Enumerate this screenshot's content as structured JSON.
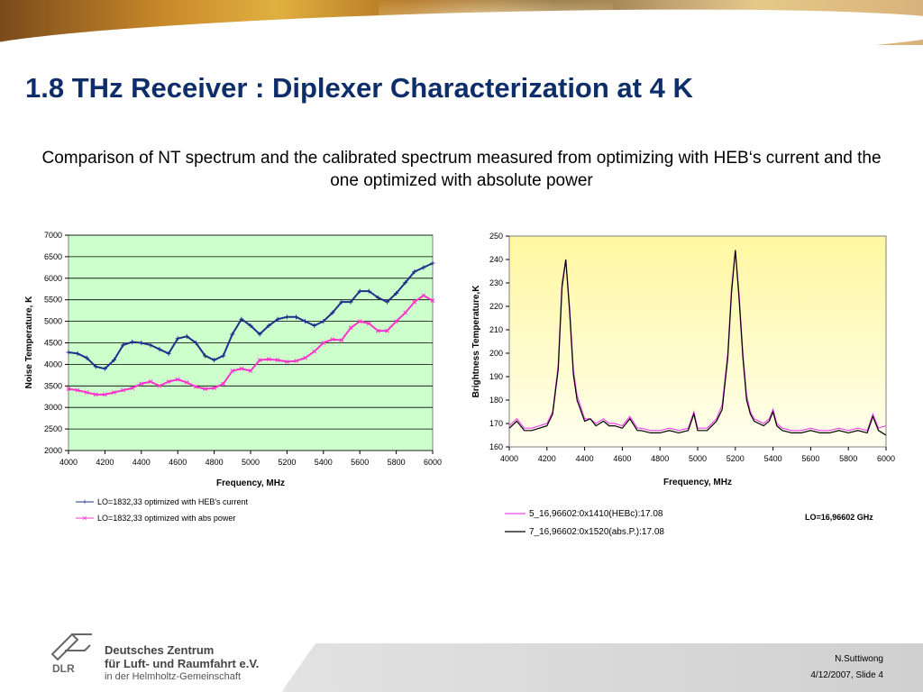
{
  "slide": {
    "title": "1.8 THz Receiver : Diplexer Characterization at 4 K",
    "subtitle": "Comparison of NT spectrum and the calibrated spectrum measured from optimizing with HEB‘s current and the one optimized with absolute power",
    "author": "N.Suttiwong",
    "date_slide": "4/12/2007, Slide 4"
  },
  "logo": {
    "mark": "DLR",
    "line1": "Deutsches Zentrum",
    "line2": "für Luft- und Raumfahrt e.V.",
    "line3": "in der Helmholtz-Gemeinschaft"
  },
  "chart_data": [
    {
      "type": "line",
      "xlabel": "Frequency, MHz",
      "ylabel": "Noise Temperature, K",
      "xlim": [
        4000,
        6000
      ],
      "ylim": [
        2000,
        7000
      ],
      "x_ticks": [
        4000,
        4200,
        4400,
        4600,
        4800,
        5000,
        5200,
        5400,
        5600,
        5800,
        6000
      ],
      "y_ticks": [
        2000,
        2500,
        3000,
        3500,
        4000,
        4500,
        5000,
        5500,
        6000,
        6500,
        7000
      ],
      "grid": true,
      "background": "#ccffcc",
      "legend_position": "bottom-left",
      "series": [
        {
          "name": "LO=1832,33 optimized with HEB's current",
          "color": "#1f2f8a",
          "marker": "plus",
          "x": [
            4000,
            4050,
            4100,
            4150,
            4200,
            4250,
            4300,
            4350,
            4400,
            4450,
            4500,
            4550,
            4600,
            4650,
            4700,
            4750,
            4800,
            4850,
            4900,
            4950,
            5000,
            5050,
            5100,
            5150,
            5200,
            5250,
            5300,
            5350,
            5400,
            5450,
            5500,
            5550,
            5600,
            5650,
            5700,
            5750,
            5800,
            5850,
            5900,
            5950,
            6000
          ],
          "y": [
            4280,
            4250,
            4150,
            3950,
            3900,
            4100,
            4450,
            4520,
            4500,
            4450,
            4350,
            4250,
            4600,
            4650,
            4500,
            4200,
            4100,
            4200,
            4700,
            5050,
            4900,
            4700,
            4900,
            5050,
            5100,
            5100,
            5000,
            4900,
            5000,
            5200,
            5450,
            5450,
            5700,
            5700,
            5550,
            5450,
            5650,
            5900,
            6150,
            6250,
            6350
          ]
        },
        {
          "name": "LO=1832,33 optimized with abs power",
          "color": "#ff33cc",
          "marker": "x",
          "x": [
            4000,
            4050,
            4100,
            4150,
            4200,
            4250,
            4300,
            4350,
            4400,
            4450,
            4500,
            4550,
            4600,
            4650,
            4700,
            4750,
            4800,
            4850,
            4900,
            4950,
            5000,
            5050,
            5100,
            5150,
            5200,
            5250,
            5300,
            5350,
            5400,
            5450,
            5500,
            5550,
            5600,
            5650,
            5700,
            5750,
            5800,
            5850,
            5900,
            5950,
            6000
          ],
          "y": [
            3430,
            3400,
            3350,
            3300,
            3300,
            3350,
            3400,
            3450,
            3550,
            3600,
            3500,
            3600,
            3650,
            3580,
            3480,
            3430,
            3450,
            3550,
            3850,
            3900,
            3850,
            4100,
            4120,
            4100,
            4060,
            4080,
            4150,
            4300,
            4500,
            4580,
            4560,
            4850,
            5000,
            4950,
            4780,
            4780,
            5000,
            5200,
            5450,
            5600,
            5480
          ]
        }
      ]
    },
    {
      "type": "line",
      "xlabel": "Frequency, MHz",
      "ylabel": "Brightness Temperature,K",
      "xlim": [
        4000,
        6000
      ],
      "ylim": [
        160,
        250
      ],
      "x_ticks": [
        4000,
        4200,
        4400,
        4600,
        4800,
        5000,
        5200,
        5400,
        5600,
        5800,
        6000
      ],
      "y_ticks": [
        160,
        170,
        180,
        190,
        200,
        210,
        220,
        230,
        240,
        250
      ],
      "grid": false,
      "background": "#ffffcc",
      "legend_position": "bottom-left",
      "annotation": "LO=16,96602 GHz",
      "series": [
        {
          "name": "5_16,96602:0x1410(HEBc):17.08",
          "color": "#ee44ee",
          "x": [
            4000,
            4040,
            4080,
            4120,
            4160,
            4200,
            4230,
            4260,
            4280,
            4300,
            4320,
            4340,
            4360,
            4400,
            4430,
            4460,
            4500,
            4530,
            4560,
            4600,
            4640,
            4680,
            4700,
            4750,
            4800,
            4850,
            4900,
            4950,
            4980,
            5000,
            5050,
            5100,
            5130,
            5160,
            5180,
            5200,
            5220,
            5240,
            5260,
            5280,
            5300,
            5350,
            5380,
            5400,
            5420,
            5450,
            5500,
            5550,
            5600,
            5650,
            5700,
            5750,
            5800,
            5850,
            5900,
            5930,
            5960,
            6000
          ],
          "y": [
            169,
            172,
            168,
            168,
            169,
            170,
            175,
            195,
            230,
            240,
            220,
            193,
            182,
            172,
            172,
            170,
            172,
            170,
            170,
            169,
            173,
            168,
            168,
            167,
            167,
            168,
            167,
            168,
            175,
            168,
            168,
            172,
            178,
            200,
            228,
            244,
            225,
            200,
            182,
            175,
            172,
            170,
            172,
            176,
            170,
            168,
            167,
            167,
            168,
            167,
            167,
            168,
            167,
            168,
            167,
            174,
            168,
            169
          ]
        },
        {
          "name": "7_16,96602:0x1520(abs.P.):17.08",
          "color": "#000000",
          "x": [
            4000,
            4040,
            4080,
            4120,
            4160,
            4200,
            4230,
            4260,
            4280,
            4300,
            4320,
            4340,
            4360,
            4400,
            4430,
            4460,
            4500,
            4530,
            4560,
            4600,
            4640,
            4680,
            4700,
            4750,
            4800,
            4850,
            4900,
            4950,
            4980,
            5000,
            5050,
            5100,
            5130,
            5160,
            5180,
            5200,
            5220,
            5240,
            5260,
            5280,
            5300,
            5350,
            5380,
            5400,
            5420,
            5450,
            5500,
            5550,
            5600,
            5650,
            5700,
            5750,
            5800,
            5850,
            5900,
            5930,
            5960,
            6000
          ],
          "y": [
            168,
            171,
            167,
            167,
            168,
            169,
            174,
            193,
            228,
            240,
            218,
            191,
            180,
            171,
            172,
            169,
            171,
            169,
            169,
            168,
            172,
            167,
            167,
            166,
            166,
            167,
            166,
            167,
            174,
            167,
            167,
            171,
            176,
            198,
            226,
            244,
            223,
            198,
            180,
            174,
            171,
            169,
            171,
            175,
            169,
            167,
            166,
            166,
            167,
            166,
            166,
            167,
            166,
            167,
            166,
            173,
            167,
            165
          ]
        }
      ]
    }
  ]
}
